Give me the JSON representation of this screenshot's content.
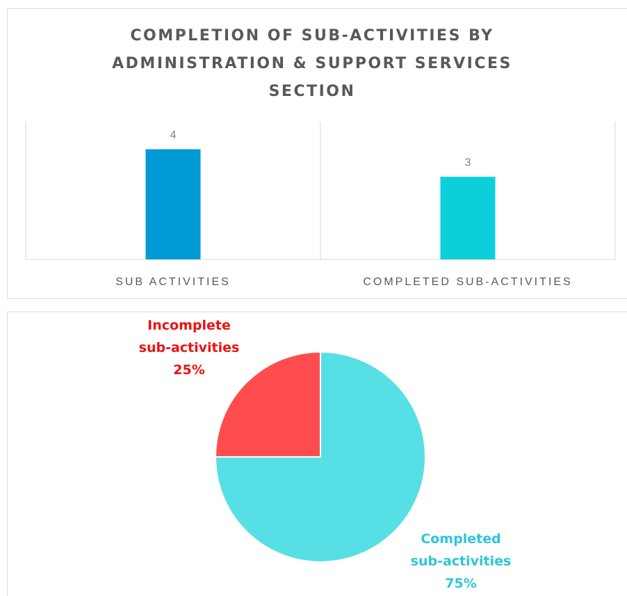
{
  "chart_data": [
    {
      "type": "bar",
      "title": "COMPLETION OF SUB-ACTIVITIES BY ADMINISTRATION & SUPPORT SERVICES SECTION",
      "categories": [
        "SUB ACTIVITIES",
        "COMPLETED SUB-ACTIVITIES"
      ],
      "values": [
        4,
        3
      ],
      "colors": [
        "#009bd6",
        "#0dcfdb"
      ],
      "ylim": [
        0,
        5
      ]
    },
    {
      "type": "pie",
      "categories": [
        "Incomplete sub-activities",
        "Completed sub-activities"
      ],
      "values": [
        25,
        75
      ],
      "value_labels": [
        "25%",
        "75%"
      ],
      "colors": [
        "#ff4d4f",
        "#56dfe4"
      ],
      "label_colors": [
        "#ee1111",
        "#2cc6d9"
      ]
    }
  ]
}
